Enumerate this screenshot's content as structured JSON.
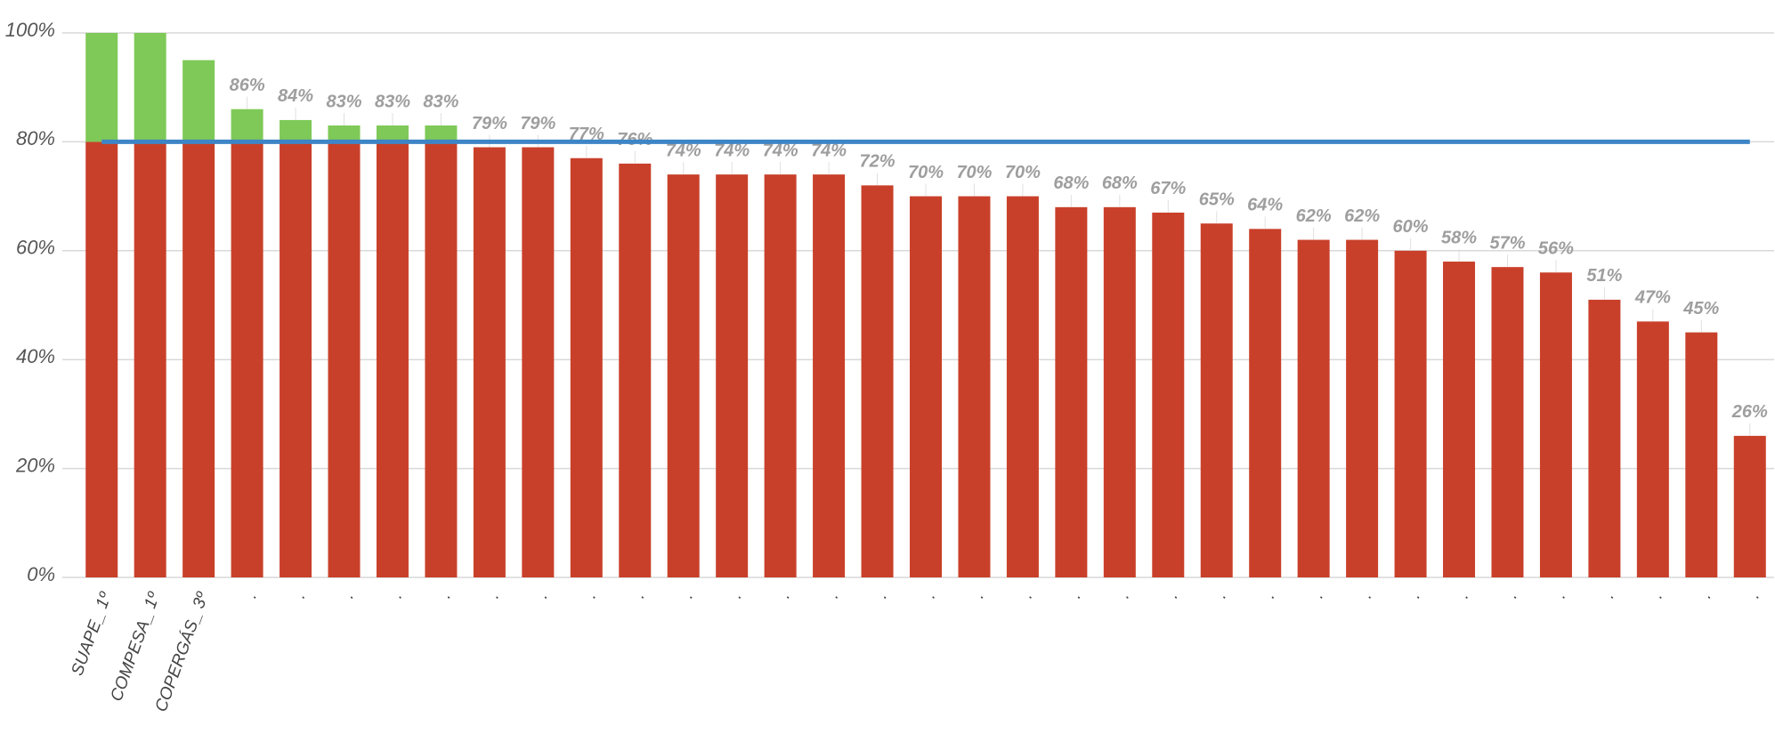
{
  "chart_data": {
    "type": "bar",
    "categories": [
      "SUAPE_ 1º",
      "COMPESA_ 1º",
      "COPERGÁS_ 3º",
      ".",
      ".",
      ".",
      ".",
      ".",
      ".",
      ".",
      ".",
      ".",
      ".",
      ".",
      ".",
      ".",
      ".",
      ".",
      ".",
      ".",
      ".",
      ".",
      ".",
      ".",
      ".",
      ".",
      ".",
      ".",
      ".",
      ".",
      ".",
      ".",
      ".",
      ".",
      "."
    ],
    "values": [
      100,
      100,
      95,
      86,
      84,
      83,
      83,
      83,
      79,
      79,
      77,
      76,
      74,
      74,
      74,
      74,
      72,
      70,
      70,
      70,
      68,
      68,
      67,
      65,
      64,
      62,
      62,
      60,
      58,
      57,
      56,
      51,
      47,
      45,
      26
    ],
    "value_labels": [
      null,
      null,
      null,
      "86%",
      "84%",
      "83%",
      "83%",
      "83%",
      "79%",
      "79%",
      "77%",
      "76%",
      "74%",
      "74%",
      "74%",
      "74%",
      "72%",
      "70%",
      "70%",
      "70%",
      "68%",
      "68%",
      "67%",
      "65%",
      "64%",
      "62%",
      "62%",
      "60%",
      "58%",
      "57%",
      "56%",
      "51%",
      "47%",
      "45%",
      "26%"
    ],
    "color_below": "#c9402a",
    "color_above": "#7ec957",
    "target": {
      "value": 80,
      "color": "#3d85c6"
    },
    "ylim": [
      0,
      100
    ],
    "yticks": [
      {
        "value": 0,
        "label": "0%"
      },
      {
        "value": 20,
        "label": "20%"
      },
      {
        "value": 40,
        "label": "40%"
      },
      {
        "value": 60,
        "label": "60%"
      },
      {
        "value": 80,
        "label": "80%"
      },
      {
        "value": 100,
        "label": "100%"
      }
    ],
    "grid": true
  }
}
